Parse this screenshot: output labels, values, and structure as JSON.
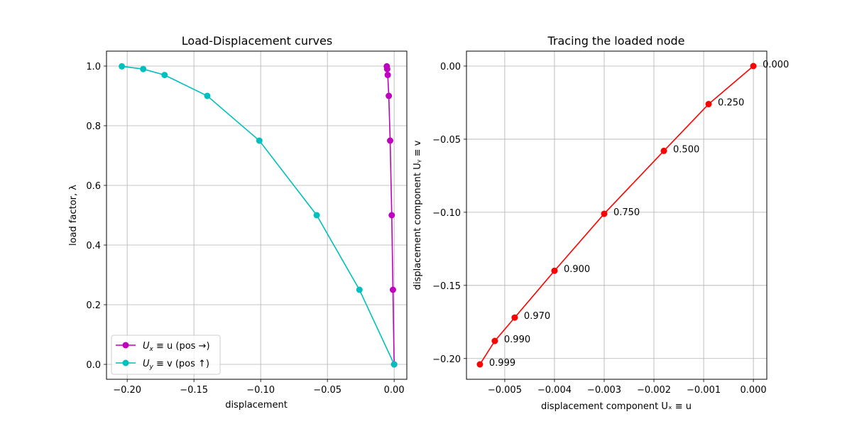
{
  "chart_data": [
    {
      "type": "line",
      "title": "Load-Displacement curves",
      "xlabel": "displacement",
      "ylabel": "load factor, λ",
      "xlim": [
        -0.2155,
        0.0095
      ],
      "ylim": [
        -0.05,
        1.05
      ],
      "xticks": [
        -0.2,
        -0.15,
        -0.1,
        -0.05,
        0.0
      ],
      "xtick_labels": [
        "−0.20",
        "−0.15",
        "−0.10",
        "−0.05",
        "0.00"
      ],
      "yticks": [
        0.0,
        0.2,
        0.4,
        0.6,
        0.8,
        1.0
      ],
      "ytick_labels": [
        "0.0",
        "0.2",
        "0.4",
        "0.6",
        "0.8",
        "1.0"
      ],
      "grid": true,
      "legend_position": "lower-left",
      "series": [
        {
          "name_main": "U",
          "name_sub": "x",
          "name_rest": " ≡ u (pos →)",
          "color": "#bf00bf",
          "x": [
            0.0,
            -0.0009,
            -0.0018,
            -0.003,
            -0.004,
            -0.0048,
            -0.0052,
            -0.0055
          ],
          "y": [
            0.0,
            0.25,
            0.5,
            0.75,
            0.9,
            0.97,
            0.99,
            0.999
          ]
        },
        {
          "name_main": "U",
          "name_sub": "y",
          "name_rest": " ≡ v (pos ↑)",
          "color": "#00bfbf",
          "x": [
            0.0,
            -0.026,
            -0.058,
            -0.101,
            -0.14,
            -0.172,
            -0.188,
            -0.204
          ],
          "y": [
            0.0,
            0.25,
            0.5,
            0.75,
            0.9,
            0.97,
            0.99,
            0.999
          ]
        }
      ]
    },
    {
      "type": "line",
      "title": "Tracing the loaded node",
      "xlabel": "displacement component Uₓ ≡ u",
      "ylabel": "displacement component Uᵧ ≡ v",
      "xlim": [
        -0.00577,
        0.00027
      ],
      "ylim": [
        -0.2142,
        0.0102
      ],
      "xticks": [
        -0.005,
        -0.004,
        -0.003,
        -0.002,
        -0.001,
        0.0
      ],
      "xtick_labels": [
        "−0.005",
        "−0.004",
        "−0.003",
        "−0.002",
        "−0.001",
        "0.000"
      ],
      "yticks": [
        0.0,
        -0.05,
        -0.1,
        -0.15,
        -0.2
      ],
      "ytick_labels": [
        "0.00",
        "−0.05",
        "−0.10",
        "−0.15",
        "−0.20"
      ],
      "grid": true,
      "series": [
        {
          "color": "#ff0000",
          "x": [
            0.0,
            -0.0009,
            -0.0018,
            -0.003,
            -0.004,
            -0.0048,
            -0.0052,
            -0.0055
          ],
          "y": [
            0.0,
            -0.026,
            -0.058,
            -0.101,
            -0.14,
            -0.172,
            -0.188,
            -0.204
          ],
          "point_labels": [
            "0.000",
            "0.250",
            "0.500",
            "0.750",
            "0.900",
            "0.970",
            "0.990",
            "0.999"
          ]
        }
      ]
    }
  ]
}
